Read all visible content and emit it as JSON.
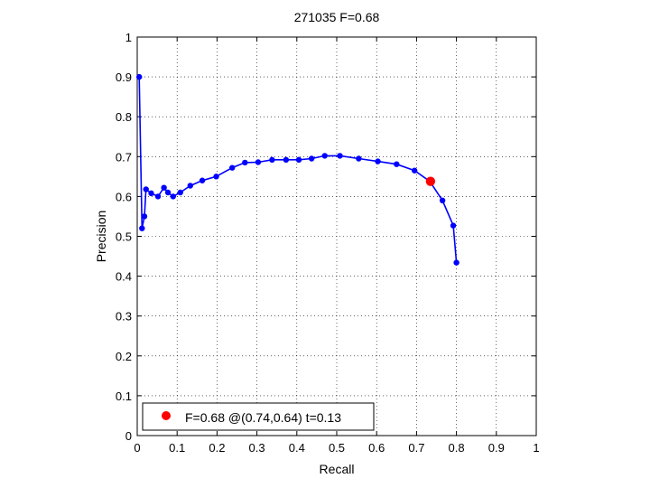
{
  "chart_data": {
    "type": "line",
    "title": "271035 F=0.68",
    "xlabel": "Recall",
    "ylabel": "Precision",
    "xlim": [
      0,
      1
    ],
    "ylim": [
      0,
      1
    ],
    "grid": true,
    "grid_style": "dotted",
    "xticks": [
      "0",
      "0.1",
      "0.2",
      "0.3",
      "0.4",
      "0.5",
      "0.6",
      "0.7",
      "0.8",
      "0.9",
      "1"
    ],
    "yticks": [
      "0",
      "0.1",
      "0.2",
      "0.3",
      "0.4",
      "0.5",
      "0.6",
      "0.7",
      "0.8",
      "0.9",
      "1"
    ],
    "legend_position": "bottom-left",
    "legend_text": "F=0.68 @(0.74,0.64) t=0.13",
    "series": [
      {
        "color": "#0000ff",
        "marker": "dot",
        "points": [
          [
            0.005,
            0.9
          ],
          [
            0.012,
            0.52
          ],
          [
            0.018,
            0.55
          ],
          [
            0.022,
            0.618
          ],
          [
            0.035,
            0.608
          ],
          [
            0.052,
            0.6
          ],
          [
            0.067,
            0.622
          ],
          [
            0.077,
            0.61
          ],
          [
            0.09,
            0.6
          ],
          [
            0.108,
            0.61
          ],
          [
            0.133,
            0.627
          ],
          [
            0.163,
            0.64
          ],
          [
            0.198,
            0.65
          ],
          [
            0.238,
            0.672
          ],
          [
            0.27,
            0.685
          ],
          [
            0.303,
            0.686
          ],
          [
            0.338,
            0.692
          ],
          [
            0.373,
            0.692
          ],
          [
            0.405,
            0.692
          ],
          [
            0.437,
            0.695
          ],
          [
            0.47,
            0.702
          ],
          [
            0.508,
            0.702
          ],
          [
            0.555,
            0.695
          ],
          [
            0.603,
            0.688
          ],
          [
            0.65,
            0.681
          ],
          [
            0.695,
            0.665
          ],
          [
            0.733,
            0.638
          ],
          [
            0.765,
            0.59
          ],
          [
            0.792,
            0.527
          ],
          [
            0.8,
            0.434
          ]
        ]
      }
    ],
    "highlight_point": {
      "x": 0.735,
      "y": 0.638,
      "color": "#ff0000"
    }
  }
}
